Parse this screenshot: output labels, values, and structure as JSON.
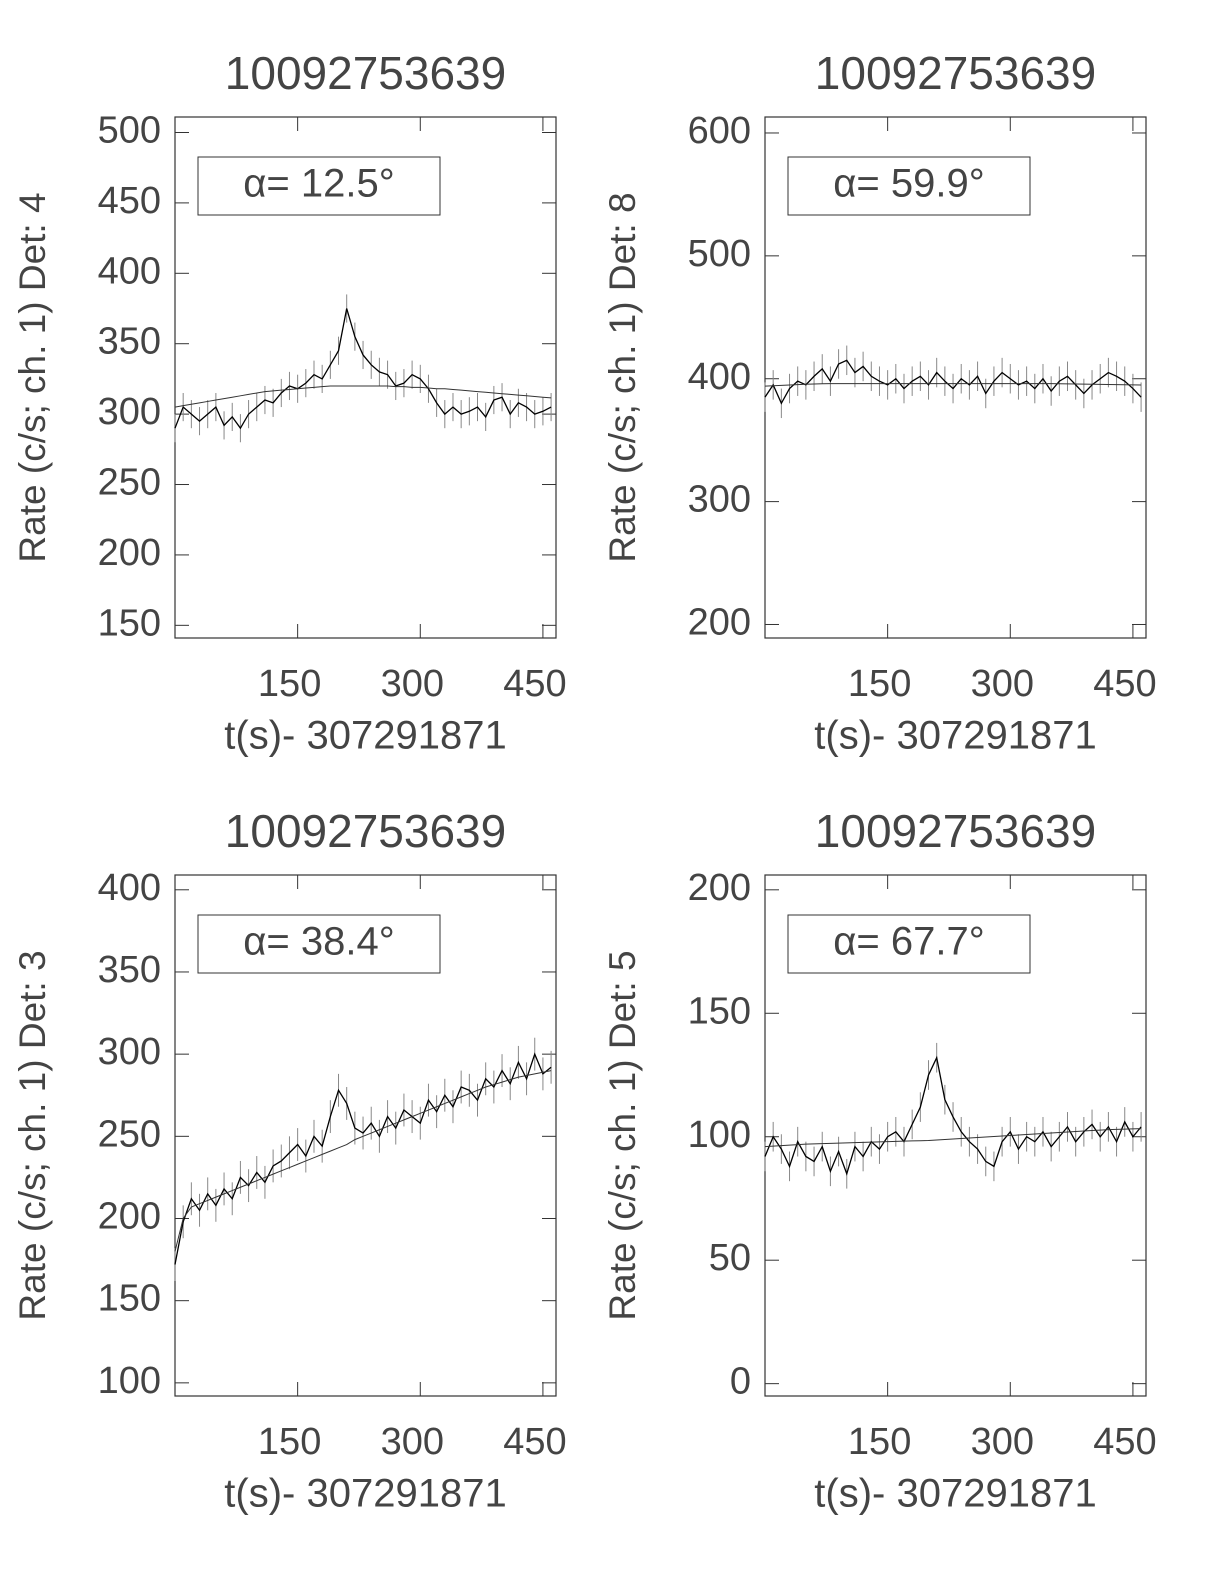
{
  "chart_data": [
    {
      "type": "line",
      "title": "10092753639",
      "annotation": "α= 12.5°",
      "xlabel": "t(s)- 307291871",
      "ylabel": "Rate (c/s; ch. 1) Det: 4",
      "x": [
        0,
        10,
        20,
        30,
        40,
        50,
        60,
        70,
        80,
        90,
        100,
        110,
        120,
        130,
        140,
        150,
        160,
        170,
        180,
        190,
        200,
        210,
        220,
        230,
        240,
        250,
        260,
        270,
        280,
        290,
        300,
        310,
        320,
        330,
        340,
        350,
        360,
        370,
        380,
        390,
        400,
        410,
        420,
        430,
        440,
        450,
        460
      ],
      "xlim": [
        0,
        466
      ],
      "xticks": [
        150,
        300,
        450
      ],
      "ylim": [
        141,
        511
      ],
      "yticks": [
        150,
        200,
        250,
        300,
        350,
        400,
        450,
        500
      ],
      "series": [
        {
          "color": "#000000",
          "error": 10,
          "values": [
            290,
            305,
            300,
            295,
            300,
            305,
            292,
            298,
            290,
            300,
            305,
            310,
            308,
            315,
            320,
            318,
            322,
            328,
            325,
            335,
            345,
            375,
            355,
            342,
            335,
            330,
            328,
            320,
            322,
            328,
            325,
            318,
            308,
            300,
            305,
            300,
            302,
            305,
            298,
            310,
            312,
            300,
            308,
            305,
            300,
            302,
            305
          ]
        },
        {
          "color": "#333333",
          "values": [
            305,
            306,
            307,
            308,
            309,
            310,
            311,
            312,
            313,
            314,
            315,
            316,
            316.5,
            317,
            317.5,
            318,
            318.5,
            319,
            319.5,
            320,
            320,
            320,
            320,
            320,
            320,
            320,
            320,
            319.5,
            319.5,
            319,
            319,
            318.5,
            318,
            318,
            317.5,
            317,
            316.5,
            316,
            315.5,
            315,
            314.5,
            314,
            313.5,
            313,
            312.5,
            312,
            311.5
          ]
        }
      ]
    },
    {
      "type": "line",
      "title": "10092753639",
      "annotation": "α= 59.9°",
      "xlabel": "t(s)- 307291871",
      "ylabel": "Rate (c/s; ch. 1) Det: 8",
      "x": [
        0,
        10,
        20,
        30,
        40,
        50,
        60,
        70,
        80,
        90,
        100,
        110,
        120,
        130,
        140,
        150,
        160,
        170,
        180,
        190,
        200,
        210,
        220,
        230,
        240,
        250,
        260,
        270,
        280,
        290,
        300,
        310,
        320,
        330,
        340,
        350,
        360,
        370,
        380,
        390,
        400,
        410,
        420,
        430,
        440,
        450,
        460
      ],
      "xlim": [
        0,
        466
      ],
      "xticks": [
        150,
        300,
        450
      ],
      "ylim": [
        189,
        613
      ],
      "yticks": [
        200,
        300,
        400,
        500,
        600
      ],
      "series": [
        {
          "color": "#000000",
          "error": 12,
          "values": [
            385,
            395,
            380,
            392,
            398,
            395,
            402,
            408,
            398,
            412,
            415,
            405,
            410,
            402,
            398,
            395,
            400,
            392,
            398,
            402,
            395,
            405,
            398,
            392,
            400,
            395,
            402,
            388,
            398,
            405,
            400,
            395,
            398,
            392,
            400,
            390,
            398,
            402,
            395,
            388,
            395,
            400,
            405,
            402,
            398,
            392,
            385
          ]
        },
        {
          "color": "#333333",
          "values": [
            394,
            394.3,
            394.6,
            394.9,
            395.2,
            395.5,
            395.7,
            395.9,
            396,
            396,
            396,
            396,
            396,
            396,
            396,
            396,
            396,
            396,
            396,
            396,
            396,
            396,
            396,
            396,
            396,
            396,
            396,
            396,
            396,
            396,
            396,
            396,
            396,
            396,
            396,
            396,
            395.9,
            395.8,
            395.7,
            395.6,
            395.5,
            395.4,
            395.3,
            395.2,
            395.1,
            395,
            394.9
          ]
        }
      ]
    },
    {
      "type": "line",
      "title": "10092753639",
      "annotation": "α= 38.4°",
      "xlabel": "t(s)- 307291871",
      "ylabel": "Rate (c/s; ch. 1) Det: 3",
      "x": [
        0,
        10,
        20,
        30,
        40,
        50,
        60,
        70,
        80,
        90,
        100,
        110,
        120,
        130,
        140,
        150,
        160,
        170,
        180,
        190,
        200,
        210,
        220,
        230,
        240,
        250,
        260,
        270,
        280,
        290,
        300,
        310,
        320,
        330,
        340,
        350,
        360,
        370,
        380,
        390,
        400,
        410,
        420,
        430,
        440,
        450,
        460
      ],
      "xlim": [
        0,
        466
      ],
      "xticks": [
        150,
        300,
        450
      ],
      "ylim": [
        92,
        409
      ],
      "yticks": [
        100,
        150,
        200,
        250,
        300,
        350,
        400
      ],
      "series": [
        {
          "color": "#000000",
          "error": 10,
          "values": [
            172,
            198,
            212,
            205,
            215,
            208,
            218,
            212,
            225,
            220,
            228,
            222,
            232,
            235,
            240,
            245,
            238,
            250,
            244,
            262,
            278,
            270,
            255,
            252,
            258,
            250,
            262,
            255,
            266,
            262,
            258,
            272,
            265,
            275,
            268,
            280,
            278,
            272,
            285,
            280,
            290,
            282,
            295,
            285,
            300,
            288,
            292
          ]
        },
        {
          "color": "#333333",
          "values": [
            180,
            200,
            207,
            209,
            211,
            213,
            215,
            217,
            219,
            221,
            223,
            225,
            227,
            229,
            231,
            233,
            235,
            237,
            239,
            241,
            243,
            245,
            248,
            250,
            252,
            254,
            256,
            258,
            260,
            262,
            264,
            266,
            268,
            270,
            272,
            274,
            276,
            278,
            280,
            281.5,
            283,
            284.5,
            286,
            287,
            288,
            289,
            290
          ]
        }
      ]
    },
    {
      "type": "line",
      "title": "10092753639",
      "annotation": "α= 67.7°",
      "xlabel": "t(s)- 307291871",
      "ylabel": "Rate (c/s; ch. 1) Det: 5",
      "x": [
        0,
        10,
        20,
        30,
        40,
        50,
        60,
        70,
        80,
        90,
        100,
        110,
        120,
        130,
        140,
        150,
        160,
        170,
        180,
        190,
        200,
        210,
        220,
        230,
        240,
        250,
        260,
        270,
        280,
        290,
        300,
        310,
        320,
        330,
        340,
        350,
        360,
        370,
        380,
        390,
        400,
        410,
        420,
        430,
        440,
        450,
        460
      ],
      "xlim": [
        0,
        466
      ],
      "xticks": [
        150,
        300,
        450
      ],
      "ylim": [
        -5,
        206
      ],
      "yticks": [
        0,
        50,
        100,
        150,
        200
      ],
      "series": [
        {
          "color": "#000000",
          "error": 6,
          "values": [
            92,
            100,
            95,
            88,
            98,
            92,
            90,
            96,
            86,
            94,
            85,
            96,
            92,
            98,
            95,
            100,
            102,
            98,
            105,
            112,
            125,
            132,
            115,
            108,
            102,
            98,
            95,
            90,
            88,
            98,
            102,
            95,
            100,
            98,
            102,
            96,
            100,
            104,
            98,
            102,
            105,
            100,
            104,
            98,
            106,
            100,
            104
          ]
        },
        {
          "color": "#333333",
          "values": [
            96,
            96.2,
            96.4,
            96.6,
            96.8,
            97,
            97.1,
            97.2,
            97.3,
            97.4,
            97.5,
            97.6,
            97.7,
            97.8,
            97.9,
            98,
            98.1,
            98.2,
            98.3,
            98.4,
            98.5,
            98.7,
            98.9,
            99.1,
            99.3,
            99.5,
            99.7,
            99.9,
            100.1,
            100.3,
            100.5,
            100.7,
            100.9,
            101.1,
            101.3,
            101.5,
            101.7,
            101.9,
            102.1,
            102.3,
            102.5,
            102.7,
            102.9,
            103,
            103.1,
            103.2,
            103.3
          ]
        }
      ]
    }
  ]
}
